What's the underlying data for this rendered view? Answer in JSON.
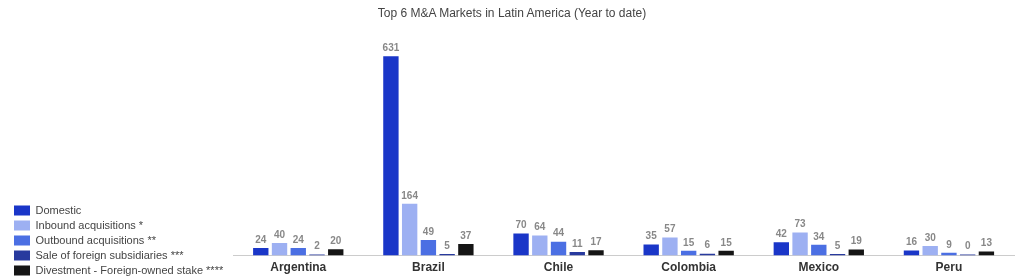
{
  "chart_data": {
    "type": "bar",
    "title": "Top 6 M&A Markets in Latin America (Year to date)",
    "categories": [
      "Argentina",
      "Brazil",
      "Chile",
      "Colombia",
      "Mexico",
      "Peru"
    ],
    "series": [
      {
        "name": "Domestic",
        "color": "#1a36c8",
        "values": [
          24,
          631,
          70,
          35,
          42,
          16
        ]
      },
      {
        "name": "Inbound acquisitions *",
        "color": "#9db0f2",
        "values": [
          40,
          164,
          64,
          57,
          73,
          30
        ]
      },
      {
        "name": "Outbound acquisitions **",
        "color": "#4b6fe3",
        "values": [
          24,
          49,
          44,
          15,
          34,
          9
        ]
      },
      {
        "name": "Sale of foreign subsidiaries ***",
        "color": "#283a9e",
        "values": [
          2,
          5,
          11,
          6,
          5,
          0
        ]
      },
      {
        "name": "Divestment - Foreign-owned stake ****",
        "color": "#151515",
        "values": [
          20,
          37,
          17,
          15,
          19,
          13
        ]
      }
    ],
    "data_labels": true,
    "legend": "bottom left",
    "grid": false
  }
}
